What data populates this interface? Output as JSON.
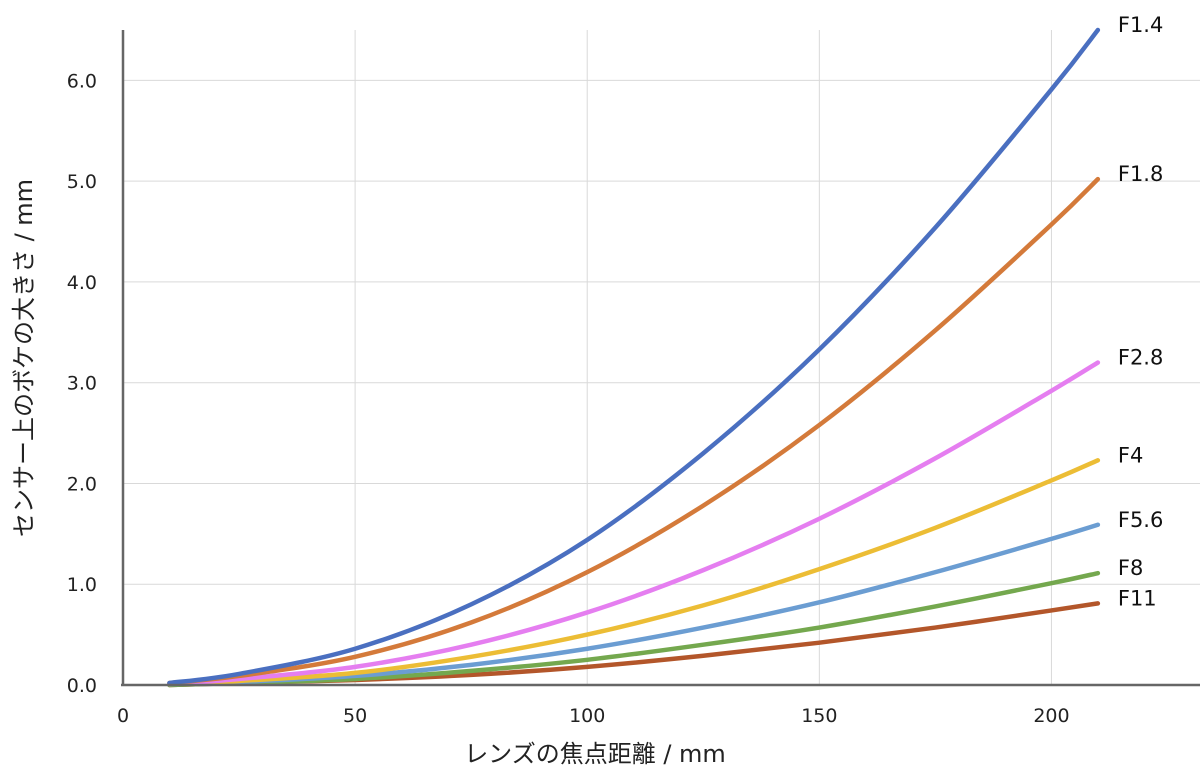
{
  "chart_data": {
    "type": "line",
    "xlabel": "レンズの焦点距離 / mm",
    "ylabel": "センサー上のボケの大きさ / mm",
    "xlim": [
      0,
      232
    ],
    "ylim": [
      0,
      6.5
    ],
    "x_ticks": [
      0,
      50,
      100,
      150,
      200
    ],
    "y_ticks": [
      0.0,
      1.0,
      2.0,
      3.0,
      4.0,
      5.0,
      6.0
    ],
    "x_tick_labels": [
      "0",
      "50",
      "100",
      "150",
      "200"
    ],
    "y_tick_labels": [
      "0.0",
      "1.0",
      "2.0",
      "3.0",
      "4.0",
      "5.0",
      "6.0"
    ],
    "grid": "vertical and horizontal",
    "legend": "labels at right end of each line",
    "x": [
      10,
      25,
      50,
      75,
      100,
      125,
      150,
      175,
      200,
      210
    ],
    "series": [
      {
        "name": "F1.4",
        "color": "#4a6fc0",
        "values": [
          0.02,
          0.11,
          0.36,
          0.8,
          1.44,
          2.3,
          3.33,
          4.54,
          5.91,
          6.5
        ]
      },
      {
        "name": "F1.8",
        "color": "#d47a3a",
        "values": [
          0.02,
          0.09,
          0.28,
          0.62,
          1.12,
          1.78,
          2.58,
          3.52,
          4.57,
          5.02
        ]
      },
      {
        "name": "F2.8",
        "color": "#e57ef0",
        "values": [
          0.01,
          0.06,
          0.18,
          0.4,
          0.72,
          1.14,
          1.65,
          2.25,
          2.92,
          3.2
        ]
      },
      {
        "name": "F4",
        "color": "#ecbd35",
        "values": [
          0.01,
          0.04,
          0.12,
          0.28,
          0.5,
          0.79,
          1.15,
          1.56,
          2.03,
          2.23
        ]
      },
      {
        "name": "F5.6",
        "color": "#6b9dd2",
        "values": [
          0.01,
          0.03,
          0.09,
          0.2,
          0.36,
          0.57,
          0.82,
          1.12,
          1.45,
          1.59
        ]
      },
      {
        "name": "F8",
        "color": "#74a84e",
        "values": [
          0.0,
          0.02,
          0.06,
          0.14,
          0.25,
          0.4,
          0.57,
          0.78,
          1.01,
          1.11
        ]
      },
      {
        "name": "F11",
        "color": "#b3562a",
        "values": [
          0.0,
          0.02,
          0.05,
          0.1,
          0.18,
          0.29,
          0.42,
          0.57,
          0.74,
          0.81
        ]
      }
    ]
  }
}
